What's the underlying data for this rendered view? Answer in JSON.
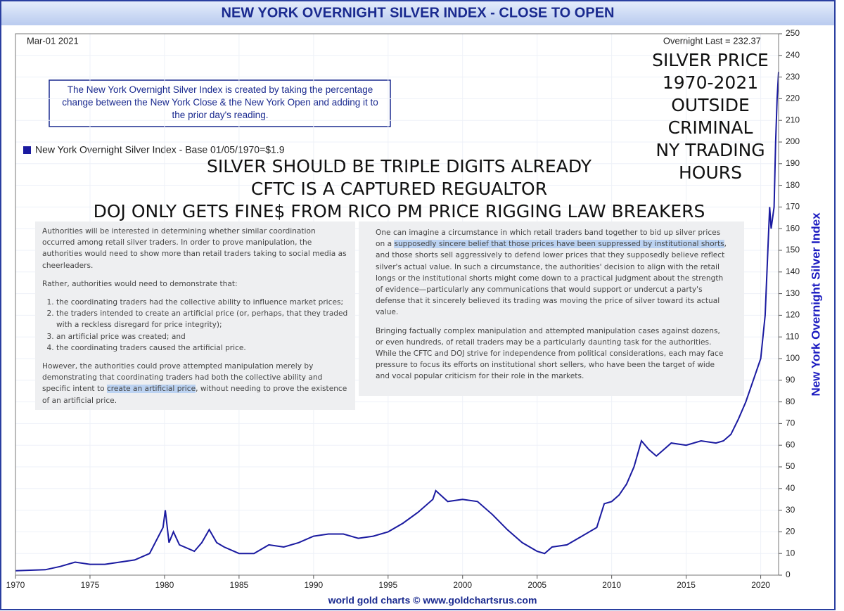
{
  "chart_data": {
    "type": "line",
    "title": "NEW YORK OVERNIGHT SILVER INDEX - CLOSE TO OPEN",
    "date_label": "Mar-01  2021",
    "last_label": "Overnight Last = 232.37",
    "description": "The New York Overnight Silver Index is created by taking the percentage change between the New York Close & the New York Open and adding it to the prior day's reading.",
    "y_label": "New York Overnight Silver Index",
    "footer": "world gold charts © www.goldchartsrus.com",
    "series": [
      {
        "name": "New York Overnight Silver Index - Base 01/05/1970=$1.9",
        "color": "#1a1aa0",
        "x": [
          1970,
          1972,
          1973,
          1974,
          1975,
          1976,
          1977,
          1978,
          1979,
          1979.9,
          1980.05,
          1980.3,
          1980.6,
          1981,
          1982,
          1982.5,
          1983,
          1983.5,
          1984,
          1985,
          1986,
          1987,
          1988,
          1989,
          1990,
          1991,
          1992,
          1993,
          1994,
          1995,
          1996,
          1997,
          1998,
          1998.2,
          1999,
          2000,
          2001,
          2002,
          2003,
          2004,
          2005,
          2005.5,
          2006,
          2007,
          2008,
          2009,
          2009.5,
          2010,
          2010.5,
          2011,
          2011.5,
          2012,
          2012.5,
          2013,
          2013.5,
          2014,
          2015,
          2016,
          2017,
          2017.5,
          2018,
          2018.5,
          2019,
          2019.5,
          2020,
          2020.3,
          2020.6,
          2020.7,
          2020.9,
          2021.0,
          2021.1,
          2021.2
        ],
        "values": [
          2,
          2.5,
          4,
          6,
          5,
          5,
          6,
          7,
          10,
          22,
          30,
          15,
          20,
          14,
          11,
          15,
          21,
          15,
          13,
          10,
          10,
          14,
          13,
          15,
          18,
          19,
          19,
          17,
          18,
          20,
          24,
          29,
          35,
          39,
          34,
          35,
          34,
          28,
          21,
          15,
          11,
          10,
          13,
          14,
          18,
          22,
          33,
          34,
          37,
          42,
          50,
          62,
          58,
          55,
          58,
          61,
          60,
          62,
          61,
          62,
          65,
          72,
          80,
          90,
          100,
          120,
          170,
          160,
          170,
          200,
          220,
          232.37
        ]
      }
    ],
    "xlim": [
      1970,
      2021.2
    ],
    "xticks": [
      1970,
      1975,
      1980,
      1985,
      1990,
      1995,
      2000,
      2005,
      2010,
      2015,
      2020
    ],
    "ylim": [
      0,
      250
    ],
    "yticks": [
      0,
      10,
      20,
      30,
      40,
      50,
      60,
      70,
      80,
      90,
      100,
      110,
      120,
      130,
      140,
      150,
      160,
      170,
      180,
      190,
      200,
      210,
      220,
      230,
      240,
      250
    ],
    "grid": true,
    "overlay_right": [
      "SILVER PRICE",
      "1970-2021",
      "OUTSIDE",
      "CRIMINAL",
      "NY TRADING",
      "HOURS"
    ],
    "overlay_center": [
      "SILVER SHOULD BE TRIPLE DIGITS ALREADY",
      "CFTC IS A CAPTURED REGUALTOR",
      "DOJ ONLY GETS FINE$ FROM RICO PM PRICE RIGGING LAW BREAKERS"
    ]
  },
  "document": {
    "left": {
      "p1": "Authorities will be interested in determining whether similar coordination occurred among retail silver traders. In order to prove manipulation, the authorities would need to show more than retail traders taking to social media as cheerleaders.",
      "p2": "Rather, authorities would need to demonstrate that:",
      "items": [
        "the coordinating traders had the collective ability to influence market prices;",
        "the traders intended to create an artificial price (or, perhaps, that they traded with a reckless disregard for price integrity);",
        "an artificial price was created; and",
        "the coordinating traders caused the artificial price."
      ],
      "p3": [
        {
          "text": "However, the authorities could prove attempted manipulation merely by demonstrating that coordinating traders had both the collective ability and specific intent to ",
          "highlight": false
        },
        {
          "text": "create an artificial price",
          "highlight": true
        },
        {
          "text": ", without needing to prove the existence of an artificial price.",
          "highlight": false
        }
      ]
    },
    "right": {
      "p1": [
        {
          "text": "One can imagine a circumstance in which retail traders band together to bid up silver prices on a ",
          "highlight": false
        },
        {
          "text": "supposedly sincere belief that those prices have been suppressed by institutional shorts",
          "highlight": true
        },
        {
          "text": ", and those shorts sell aggressively to defend lower prices that they supposedly believe reflect silver's actual value. In such a circumstance, the authorities' decision to align with the retail longs or the institutional shorts might come down to a practical judgment about the strength of evidence—particularly any communications that would support or undercut a party's defense that it sincerely believed its trading was moving the price of silver toward its actual value.",
          "highlight": false
        }
      ],
      "p2": "Bringing factually complex manipulation and attempted manipulation cases against dozens, or even hundreds, of retail traders may be a particularly daunting task for the authorities. While the CFTC and DOJ strive for independence from political considerations, each may face pressure to focus its efforts on institutional short sellers, who have been the target of wide and vocal popular criticism for their role in the markets."
    }
  }
}
